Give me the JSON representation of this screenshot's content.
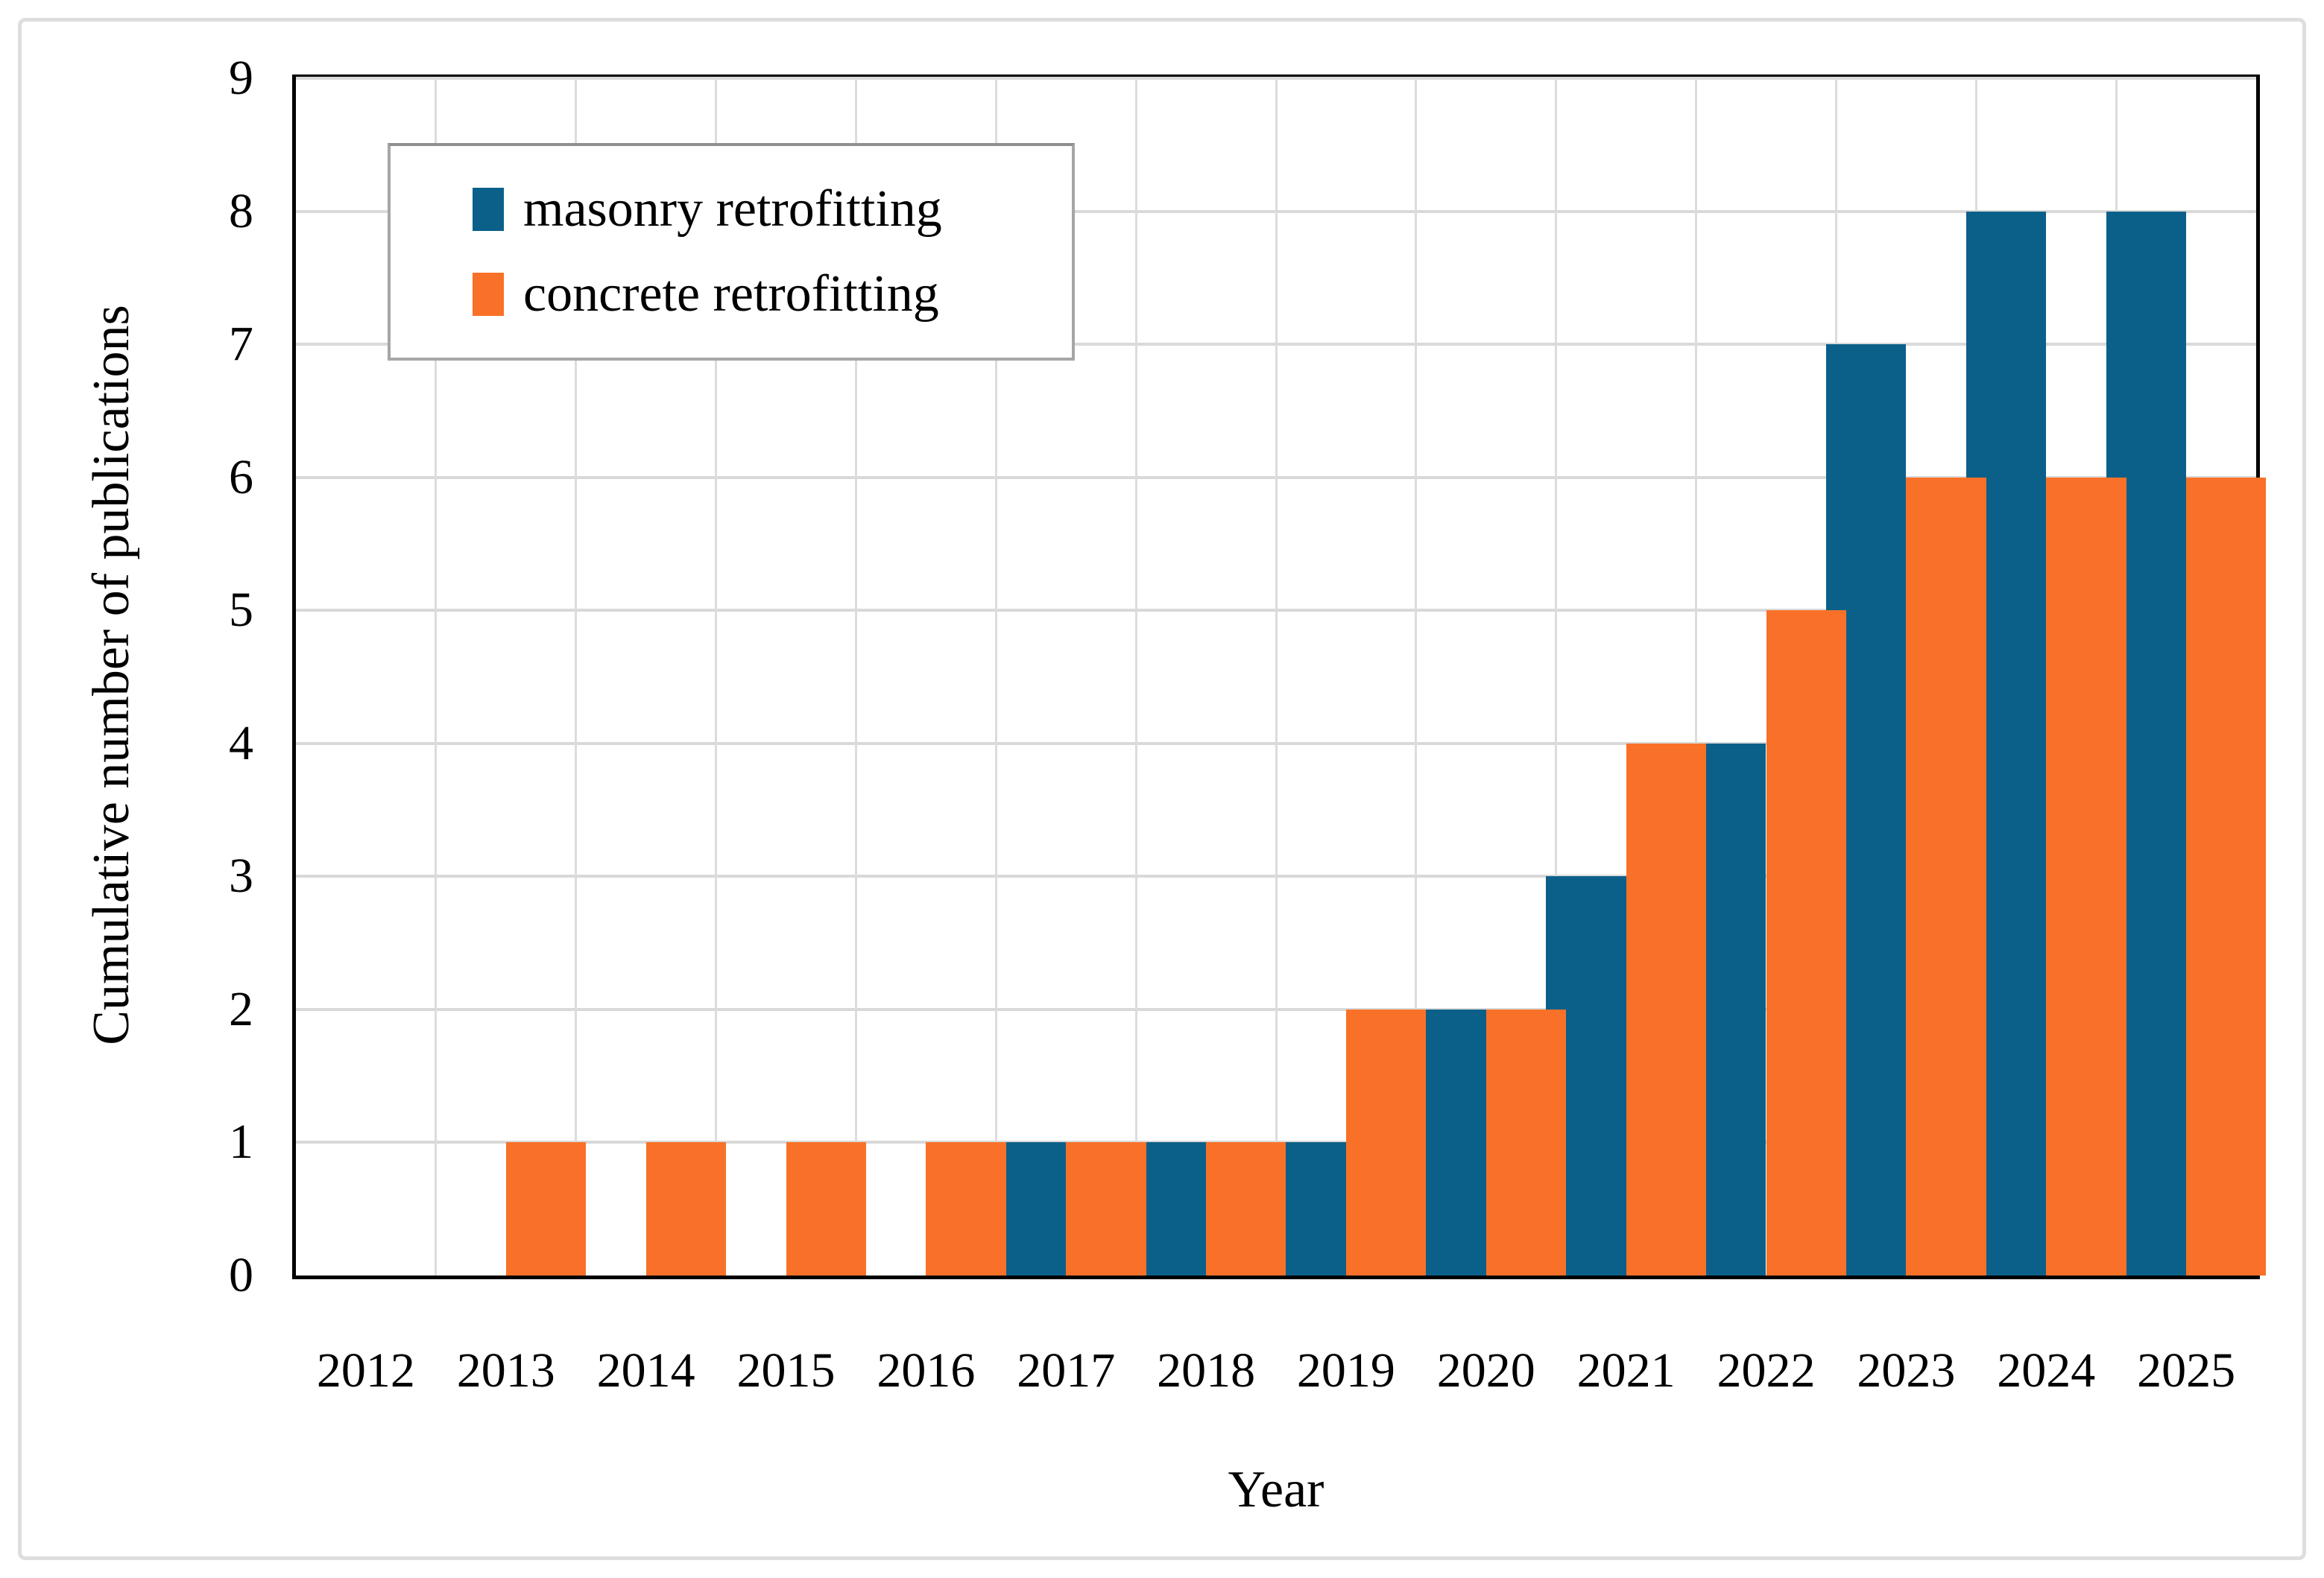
{
  "figure": {
    "type_label": "clustered-column-chart",
    "background": "#ffffff",
    "outer_border_color": "#dedede",
    "plot_border_color": "#000000",
    "gridline_color": "#d9d9d9"
  },
  "legend": {
    "position": "top-left-inside",
    "border_color": "#a6a6a6",
    "items": [
      {
        "label": "masonry retrofitting",
        "color": "#0b608a"
      },
      {
        "label": "concrete retrofitting",
        "color": "#f97128"
      }
    ]
  },
  "chart_data": {
    "type": "bar",
    "title": "",
    "xlabel": "Year",
    "ylabel": "Cumulative number of publications",
    "categories": [
      "2012",
      "2013",
      "2014",
      "2015",
      "2016",
      "2017",
      "2018",
      "2019",
      "2020",
      "2021",
      "2022",
      "2023",
      "2024",
      "2025"
    ],
    "series": [
      {
        "name": "masonry retrofitting",
        "color": "#0b608a",
        "values": [
          0,
          0,
          0,
          0,
          0,
          1,
          1,
          1,
          2,
          3,
          4,
          7,
          8,
          8
        ]
      },
      {
        "name": "concrete retrofitting",
        "color": "#f97128",
        "values": [
          0,
          1,
          1,
          1,
          1,
          1,
          1,
          2,
          2,
          4,
          5,
          6,
          6,
          6
        ]
      }
    ],
    "ylim": [
      0,
      9
    ],
    "yticks": [
      0,
      1,
      2,
      3,
      4,
      5,
      6,
      7,
      8,
      9
    ],
    "grid": true,
    "bar_gap_ratio": 1.5,
    "legend_position": "top-left-inside"
  }
}
